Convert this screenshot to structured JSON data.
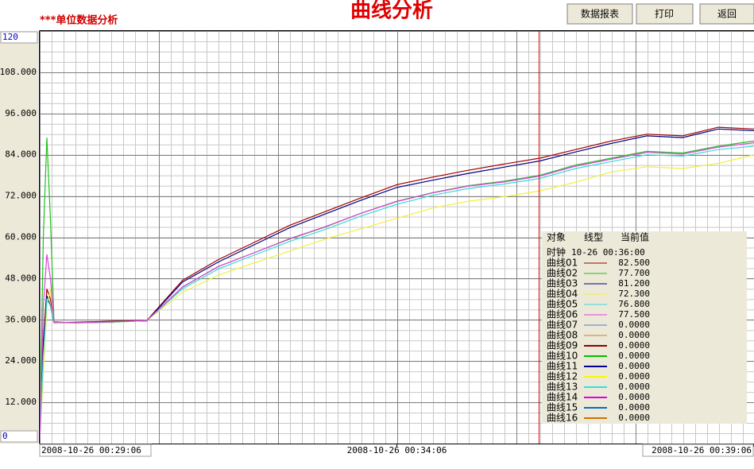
{
  "header": {
    "title": "曲线分析",
    "subtitle": "***单位数据分析",
    "buttons": [
      "数据报表",
      "打印",
      "返回"
    ]
  },
  "chart_data": {
    "type": "line",
    "x": [
      "2008-10-26 00:29:06",
      "2008-10-26 00:29:09",
      "2008-10-26 00:29:12",
      "2008-10-26 00:29:15",
      "2008-10-26 00:29:18",
      "2008-10-26 00:29:36",
      "2008-10-26 00:30:06",
      "2008-10-26 00:30:36",
      "2008-10-26 00:31:06",
      "2008-10-26 00:31:36",
      "2008-10-26 00:32:06",
      "2008-10-26 00:32:36",
      "2008-10-26 00:33:06",
      "2008-10-26 00:33:36",
      "2008-10-26 00:34:06",
      "2008-10-26 00:34:36",
      "2008-10-26 00:35:06",
      "2008-10-26 00:35:36",
      "2008-10-26 00:36:06",
      "2008-10-26 00:36:36",
      "2008-10-26 00:37:06",
      "2008-10-26 00:37:36",
      "2008-10-26 00:38:06",
      "2008-10-26 00:38:36",
      "2008-10-26 00:39:06"
    ],
    "xlim": [
      "2008-10-26 00:29:06",
      "2008-10-26 00:39:06"
    ],
    "xticks": [
      "2008-10-26 00:29:06",
      "2008-10-26 00:34:06",
      "2008-10-26 00:39:06"
    ],
    "ylim": [
      0,
      120
    ],
    "yticks": [
      0,
      {
        "value": 12,
        "label": "12.000"
      },
      {
        "value": 24,
        "label": "24.000"
      },
      {
        "value": 36,
        "label": "36.000"
      },
      {
        "value": 48,
        "label": "48.000"
      },
      {
        "value": 60,
        "label": "60.000"
      },
      {
        "value": 72,
        "label": "72.000"
      },
      {
        "value": 84,
        "label": "84.000"
      },
      {
        "value": 96,
        "label": "96.000"
      },
      {
        "value": 108,
        "label": "108.000"
      },
      120
    ],
    "grid": true,
    "legend": {
      "headers": [
        "对象",
        "线型",
        "当前值"
      ],
      "clock_label": "时钟",
      "clock_time": "10-26 00:36:00"
    },
    "series": [
      {
        "name": "曲线01",
        "color": "#a00000",
        "current_value": "82.500",
        "values": [
          1,
          30,
          45,
          42,
          35.2,
          35.3,
          35.6,
          35.8,
          47.5,
          53.5,
          58.5,
          63.5,
          67.5,
          71.5,
          75.3,
          77.5,
          79.5,
          81.3,
          83,
          85.5,
          88,
          90,
          89.5,
          92,
          91.5
        ]
      },
      {
        "name": "曲线02",
        "color": "#20c020",
        "current_value": "77.700",
        "values": [
          2,
          60,
          89,
          65,
          35.5,
          35,
          35.2,
          35.8,
          45.5,
          51.5,
          55.5,
          59.5,
          63,
          67,
          70.5,
          73,
          75,
          76.3,
          78,
          81,
          83,
          85,
          84.5,
          86.5,
          88
        ]
      },
      {
        "name": "曲线03",
        "color": "#000080",
        "current_value": "81.200",
        "values": [
          1,
          28,
          43,
          40,
          35,
          35.2,
          35.5,
          35.7,
          47,
          52.8,
          57.8,
          62.8,
          66.8,
          70.8,
          74.5,
          76.6,
          78.6,
          80.4,
          82.2,
          84.8,
          87.3,
          89.5,
          89,
          91.5,
          91
        ]
      },
      {
        "name": "曲线04",
        "color": "#f0f040",
        "current_value": "72.300",
        "values": [
          1,
          20,
          40,
          45,
          35,
          35,
          35.2,
          35.8,
          44,
          49,
          52.5,
          56,
          59.5,
          62.5,
          65.5,
          68.5,
          70.5,
          71.8,
          73.5,
          76,
          79,
          80.5,
          80,
          81.5,
          84
        ]
      },
      {
        "name": "曲线05",
        "color": "#40d8d8",
        "current_value": "76.800",
        "values": [
          1,
          25,
          42,
          40,
          35.2,
          35.1,
          35.3,
          35.8,
          45,
          50.8,
          54.8,
          58.8,
          62.3,
          66.2,
          69.6,
          72.2,
          74.2,
          75.5,
          77.1,
          80,
          82,
          84,
          83.6,
          85.5,
          86.5
        ]
      },
      {
        "name": "曲线06",
        "color": "#e040e0",
        "current_value": "77.500",
        "values": [
          1,
          40,
          55,
          48,
          35.3,
          35.2,
          35.4,
          35.8,
          45.6,
          51.5,
          55.5,
          59.6,
          63.1,
          67,
          70.4,
          72.9,
          74.9,
          76.1,
          77.8,
          80.7,
          82.7,
          84.7,
          84.2,
          86.2,
          87.5
        ]
      },
      {
        "name": "曲线07",
        "color": "#4080c0",
        "current_value": "0.0000"
      },
      {
        "name": "曲线08",
        "color": "#c08040",
        "current_value": "0.0000"
      },
      {
        "name": "曲线09",
        "color": "#900000",
        "current_value": "0.0000"
      },
      {
        "name": "曲线10",
        "color": "#00c000",
        "current_value": "0.0000"
      },
      {
        "name": "曲线11",
        "color": "#000090",
        "current_value": "0.0000"
      },
      {
        "name": "曲线12",
        "color": "#f8f800",
        "current_value": "0.0000"
      },
      {
        "name": "曲线13",
        "color": "#30e0e0",
        "current_value": "0.0000"
      },
      {
        "name": "曲线14",
        "color": "#e000e0",
        "current_value": "0.0000"
      },
      {
        "name": "曲线15",
        "color": "#0070c0",
        "current_value": "0.0000"
      },
      {
        "name": "曲线16",
        "color": "#d07000",
        "current_value": "0.0000"
      }
    ]
  }
}
